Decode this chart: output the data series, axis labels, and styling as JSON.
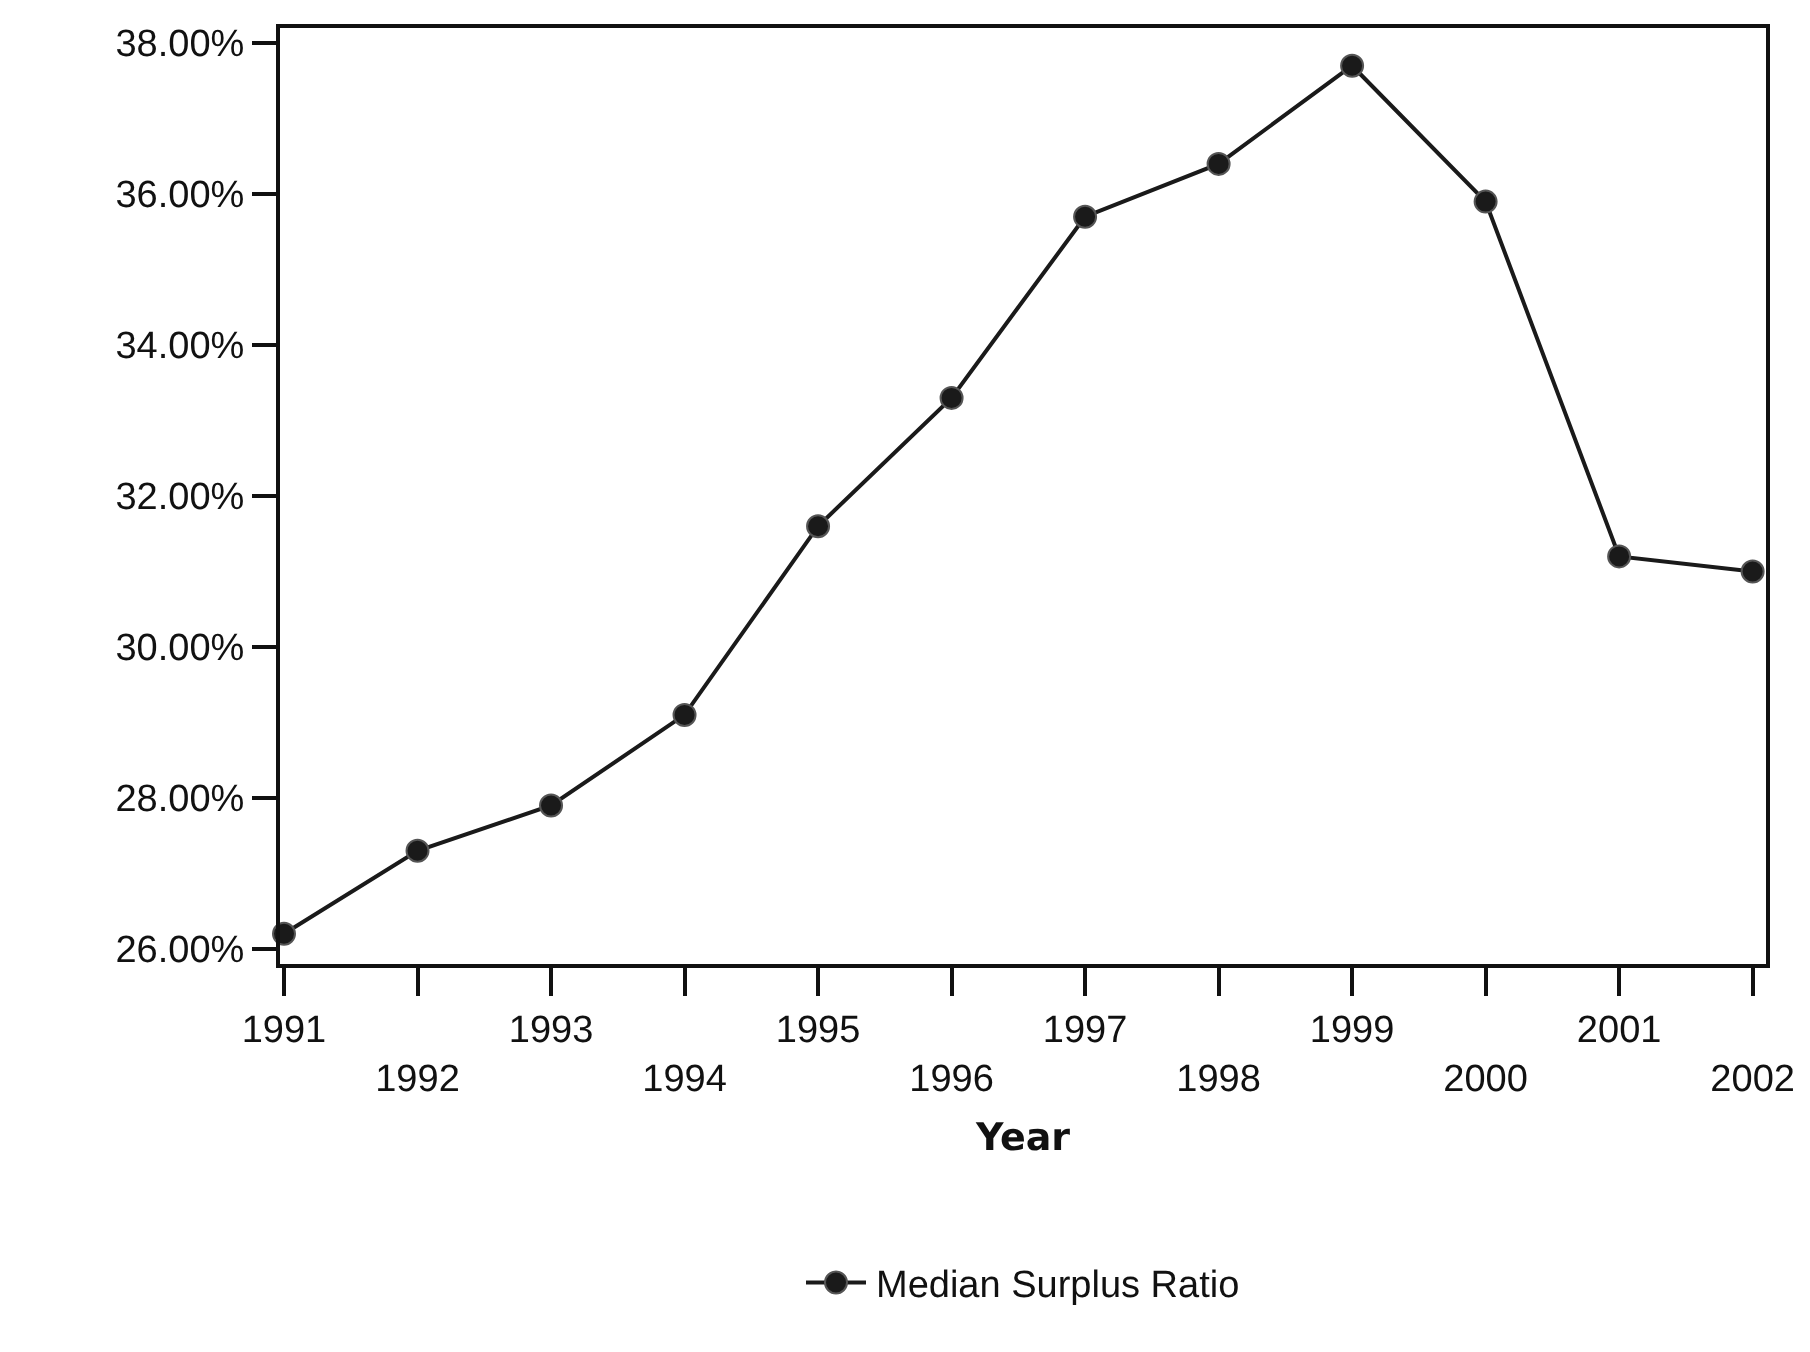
{
  "chart_data": {
    "type": "line",
    "xlabel": "Year",
    "categories": [
      "1991",
      "1992",
      "1993",
      "1994",
      "1995",
      "1996",
      "1997",
      "1998",
      "1999",
      "2000",
      "2001",
      "2002"
    ],
    "series": [
      {
        "name": "Median Surplus Ratio",
        "color": "#1a1a1a",
        "values": [
          26.2,
          27.3,
          27.9,
          29.1,
          31.6,
          33.3,
          35.7,
          36.4,
          37.7,
          35.9,
          31.2,
          31.0
        ]
      }
    ],
    "ylim": [
      25.8,
      38.2
    ],
    "yticks": [
      {
        "value": 26,
        "label": "26.00%"
      },
      {
        "value": 28,
        "label": "28.00%"
      },
      {
        "value": 30,
        "label": "30.00%"
      },
      {
        "value": 32,
        "label": "32.00%"
      },
      {
        "value": 34,
        "label": "34.00%"
      },
      {
        "value": 36,
        "label": "36.00%"
      },
      {
        "value": 38,
        "label": "38.00%"
      }
    ],
    "grid": false,
    "legend": "bottom",
    "marker": "circle",
    "line_style": "solid"
  }
}
